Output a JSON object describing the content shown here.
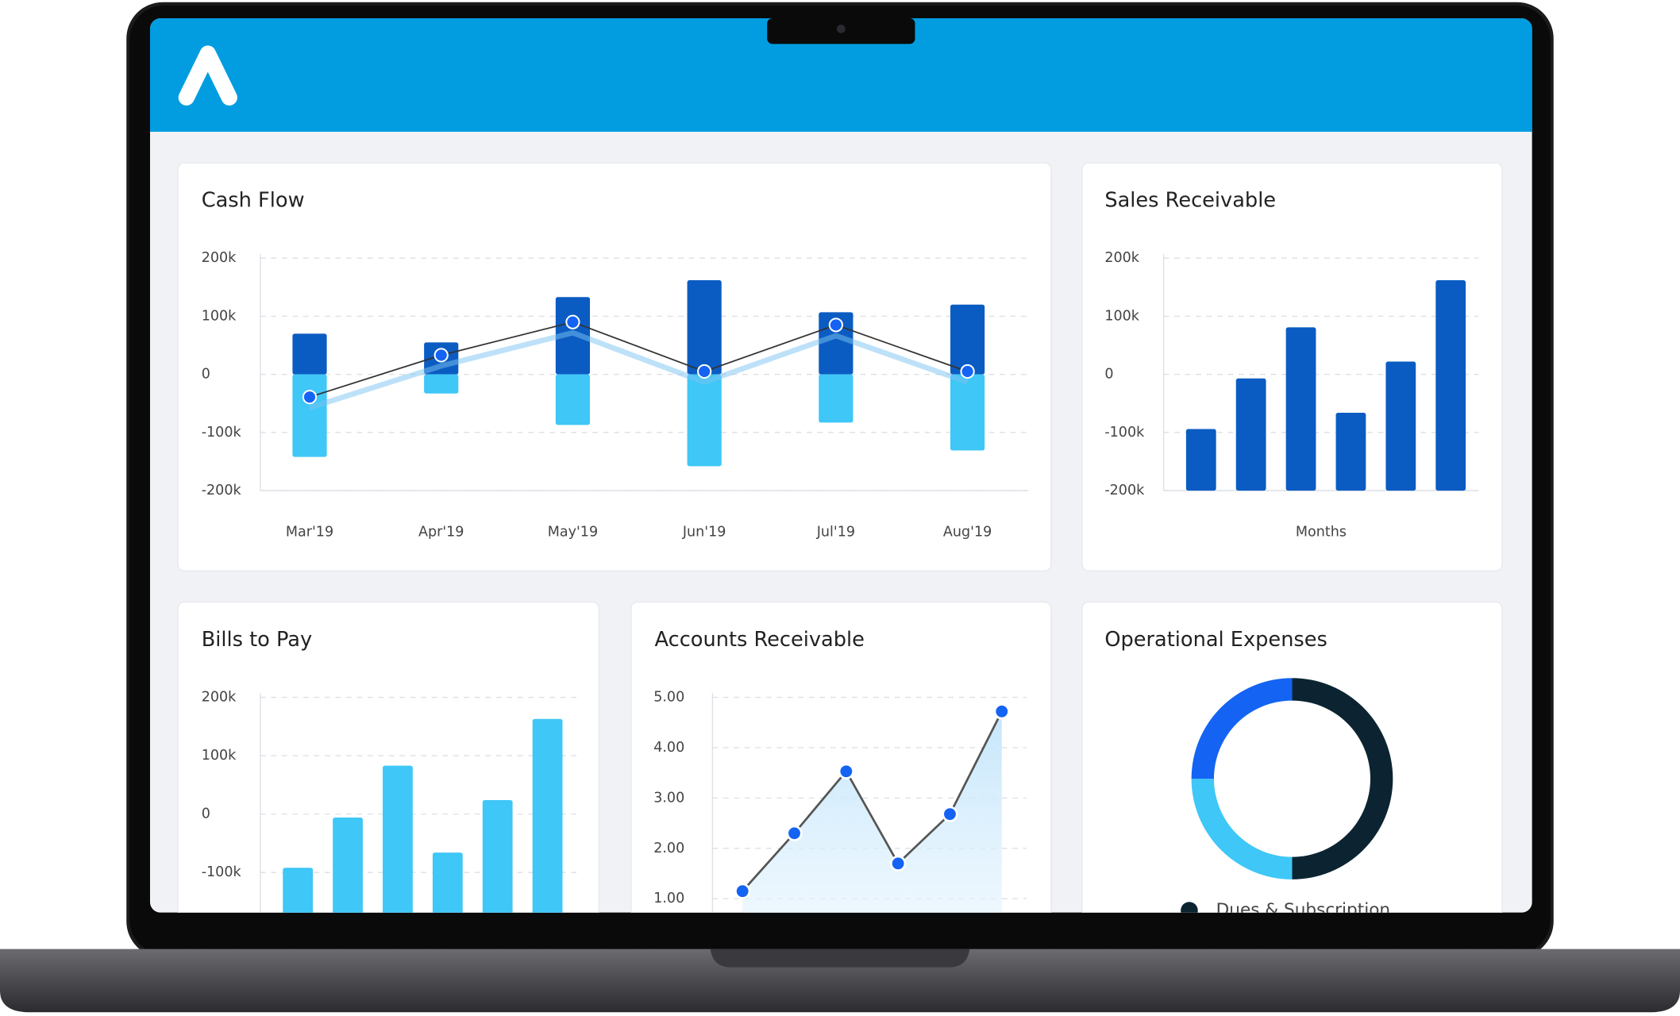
{
  "chart_data": [
    {
      "type": "bar-line",
      "title": "Cash Flow",
      "categories": [
        "Mar'19",
        "Apr'19",
        "May'19",
        "Jun'19",
        "Jul'19",
        "Aug'19"
      ],
      "series": [
        {
          "type": "bar",
          "color": "#0b5cc2",
          "values": [
            70000,
            55000,
            133000,
            162000,
            107000,
            120000
          ]
        },
        {
          "type": "bar",
          "color": "#3ec7f7",
          "values": [
            -142000,
            -33000,
            -87000,
            -158000,
            -83000,
            -131000
          ]
        },
        {
          "type": "line",
          "color": "#333333",
          "marker_color": "#1463f3",
          "values": [
            -39000,
            33000,
            90000,
            5000,
            85000,
            5000
          ]
        }
      ],
      "ylim": [
        -200000,
        200000
      ],
      "yticks": [
        {
          "value": 200000,
          "label": "200k"
        },
        {
          "value": 100000,
          "label": "100k"
        },
        0,
        {
          "value": -100000,
          "label": "-100k"
        },
        {
          "value": -200000,
          "label": "-200k"
        }
      ],
      "grid": true
    },
    {
      "type": "bar",
      "title": "Sales Receivable",
      "x_label": "Months",
      "color": "#0b5cc2",
      "values": [
        -94000,
        -7000,
        81000,
        -66000,
        22000,
        162000
      ],
      "ylim": [
        -200000,
        200000
      ],
      "yticks": [
        {
          "value": 200000,
          "label": "200k"
        },
        {
          "value": 100000,
          "label": "100k"
        },
        0,
        {
          "value": -100000,
          "label": "-100k"
        },
        {
          "value": -200000,
          "label": "-200k"
        }
      ],
      "grid": true
    },
    {
      "type": "bar",
      "title": "Bills to Pay",
      "color": "#3ec7f7",
      "values": [
        -92000,
        -6000,
        83000,
        -66000,
        24000,
        163000
      ],
      "ylim": [
        -200000,
        200000
      ],
      "yticks": [
        {
          "value": 200000,
          "label": "200k"
        },
        {
          "value": 100000,
          "label": "100k"
        },
        0,
        {
          "value": -100000,
          "label": "-100k"
        }
      ],
      "grid": true
    },
    {
      "type": "area",
      "title": "Accounts Receivable",
      "color": "#1463f3",
      "line_color": "#555555",
      "values": [
        1.15,
        2.3,
        3.53,
        1.7,
        2.68,
        4.72
      ],
      "ylim": [
        0,
        5
      ],
      "yticks": [
        {
          "value": 5,
          "label": "5.00"
        },
        {
          "value": 4,
          "label": "4.00"
        },
        {
          "value": 3,
          "label": "3.00"
        },
        {
          "value": 2,
          "label": "2.00"
        },
        {
          "value": 1,
          "label": "1.00"
        }
      ],
      "grid": true
    },
    {
      "type": "donut",
      "title": "Operational Expenses",
      "categories": [
        "Dues & Subscription",
        null,
        null
      ],
      "values": [
        50,
        25,
        25
      ],
      "colors": [
        "#0c2432",
        "#3ec7f7",
        "#1463f3"
      ]
    }
  ]
}
